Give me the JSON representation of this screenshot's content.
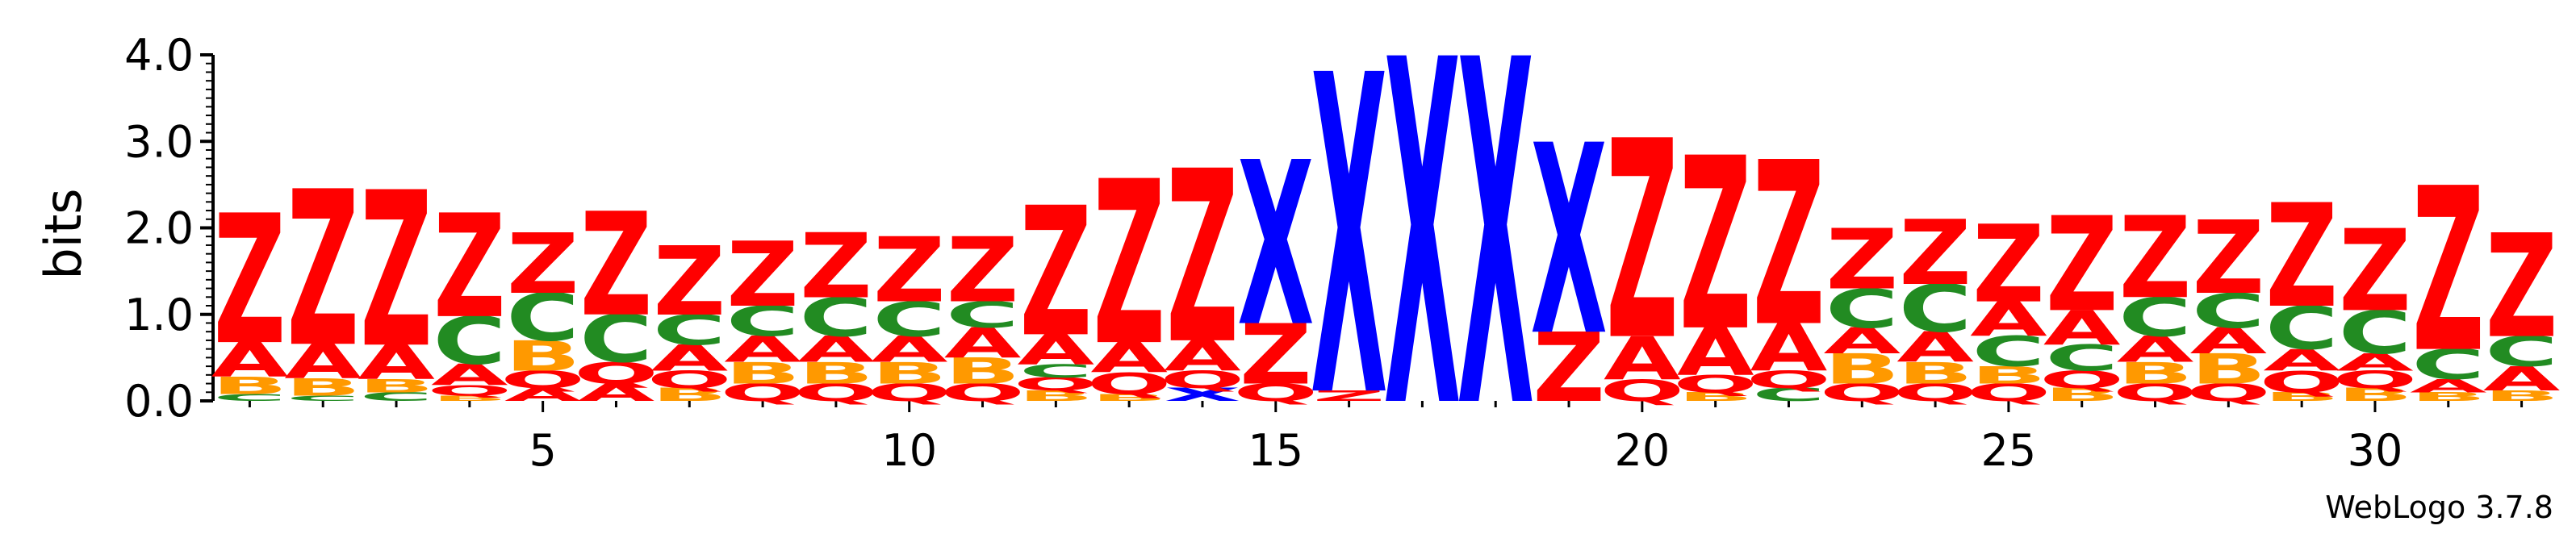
{
  "chart_data": {
    "type": "sequence-logo",
    "ylabel": "bits",
    "ylim": [
      0,
      4.0
    ],
    "y_ticks": [
      "0.0",
      "1.0",
      "2.0",
      "3.0",
      "4.0"
    ],
    "x_ticks": [
      "5",
      "10",
      "15",
      "20",
      "25",
      "30"
    ],
    "x_tick_positions": [
      5,
      10,
      15,
      20,
      25,
      30
    ],
    "positions": 32,
    "colors": {
      "Z": "#ff0000",
      "A": "#ff0000",
      "Q": "#ff0000",
      "B": "#ff9900",
      "C": "#228b22",
      "X": "#0000ff"
    },
    "stacks": [
      [
        [
          "C",
          0.08
        ],
        [
          "B",
          0.2
        ],
        [
          "A",
          0.4
        ],
        [
          "Z",
          1.5
        ]
      ],
      [
        [
          "C",
          0.06
        ],
        [
          "B",
          0.2
        ],
        [
          "A",
          0.4
        ],
        [
          "Z",
          1.8
        ]
      ],
      [
        [
          "C",
          0.1
        ],
        [
          "B",
          0.15
        ],
        [
          "A",
          0.4
        ],
        [
          "Z",
          1.8
        ]
      ],
      [
        [
          "B",
          0.06
        ],
        [
          "Q",
          0.12
        ],
        [
          "A",
          0.25
        ],
        [
          "C",
          0.55
        ],
        [
          "Z",
          1.2
        ]
      ],
      [
        [
          "A",
          0.15
        ],
        [
          "Q",
          0.2
        ],
        [
          "B",
          0.35
        ],
        [
          "C",
          0.55
        ],
        [
          "Z",
          0.7
        ]
      ],
      [
        [
          "A",
          0.2
        ],
        [
          "Q",
          0.25
        ],
        [
          "C",
          0.55
        ],
        [
          "Z",
          1.2
        ]
      ],
      [
        [
          "B",
          0.15
        ],
        [
          "Q",
          0.2
        ],
        [
          "A",
          0.3
        ],
        [
          "C",
          0.35
        ],
        [
          "Z",
          0.8
        ]
      ],
      [
        [
          "Q",
          0.2
        ],
        [
          "B",
          0.25
        ],
        [
          "A",
          0.3
        ],
        [
          "C",
          0.35
        ],
        [
          "Z",
          0.75
        ]
      ],
      [
        [
          "Q",
          0.2
        ],
        [
          "B",
          0.25
        ],
        [
          "A",
          0.3
        ],
        [
          "C",
          0.45
        ],
        [
          "Z",
          0.75
        ]
      ],
      [
        [
          "Q",
          0.2
        ],
        [
          "B",
          0.25
        ],
        [
          "A",
          0.3
        ],
        [
          "C",
          0.4
        ],
        [
          "Z",
          0.75
        ]
      ],
      [
        [
          "Q",
          0.2
        ],
        [
          "B",
          0.3
        ],
        [
          "A",
          0.35
        ],
        [
          "C",
          0.3
        ],
        [
          "Z",
          0.75
        ]
      ],
      [
        [
          "B",
          0.12
        ],
        [
          "Q",
          0.15
        ],
        [
          "C",
          0.15
        ],
        [
          "A",
          0.35
        ],
        [
          "Z",
          1.5
        ]
      ],
      [
        [
          "B",
          0.08
        ],
        [
          "Q",
          0.25
        ],
        [
          "A",
          0.35
        ],
        [
          "Z",
          1.9
        ]
      ],
      [
        [
          "X",
          0.15
        ],
        [
          "Q",
          0.2
        ],
        [
          "A",
          0.35
        ],
        [
          "Z",
          2.0
        ]
      ],
      [
        [
          "Q",
          0.2
        ],
        [
          "Z",
          0.7
        ],
        [
          "X",
          1.9
        ]
      ],
      [
        [
          "Z",
          0.12
        ],
        [
          "X",
          3.7
        ]
      ],
      [
        [
          "X",
          4.0
        ]
      ],
      [
        [
          "X",
          4.0
        ]
      ],
      [
        [
          "Z",
          0.8
        ],
        [
          "X",
          2.2
        ]
      ],
      [
        [
          "Q",
          0.25
        ],
        [
          "A",
          0.5
        ],
        [
          "Z",
          2.3
        ]
      ],
      [
        [
          "B",
          0.1
        ],
        [
          "Q",
          0.2
        ],
        [
          "A",
          0.55
        ],
        [
          "Z",
          2.0
        ]
      ],
      [
        [
          "C",
          0.15
        ],
        [
          "Q",
          0.2
        ],
        [
          "A",
          0.55
        ],
        [
          "Z",
          1.9
        ]
      ],
      [
        [
          "Q",
          0.2
        ],
        [
          "B",
          0.35
        ],
        [
          "A",
          0.3
        ],
        [
          "C",
          0.45
        ],
        [
          "Z",
          0.7
        ]
      ],
      [
        [
          "Q",
          0.2
        ],
        [
          "B",
          0.25
        ],
        [
          "A",
          0.35
        ],
        [
          "C",
          0.55
        ],
        [
          "Z",
          0.75
        ]
      ],
      [
        [
          "Q",
          0.2
        ],
        [
          "B",
          0.2
        ],
        [
          "C",
          0.35
        ],
        [
          "A",
          0.4
        ],
        [
          "Z",
          0.9
        ]
      ],
      [
        [
          "B",
          0.15
        ],
        [
          "Q",
          0.2
        ],
        [
          "C",
          0.3
        ],
        [
          "A",
          0.4
        ],
        [
          "Z",
          1.1
        ]
      ],
      [
        [
          "Q",
          0.2
        ],
        [
          "B",
          0.25
        ],
        [
          "A",
          0.3
        ],
        [
          "C",
          0.45
        ],
        [
          "Z",
          0.95
        ]
      ],
      [
        [
          "Q",
          0.2
        ],
        [
          "B",
          0.35
        ],
        [
          "A",
          0.3
        ],
        [
          "C",
          0.4
        ],
        [
          "Z",
          0.85
        ]
      ],
      [
        [
          "B",
          0.1
        ],
        [
          "Q",
          0.25
        ],
        [
          "A",
          0.25
        ],
        [
          "C",
          0.5
        ],
        [
          "Z",
          1.2
        ]
      ],
      [
        [
          "B",
          0.15
        ],
        [
          "Q",
          0.2
        ],
        [
          "A",
          0.2
        ],
        [
          "C",
          0.5
        ],
        [
          "Z",
          0.95
        ]
      ],
      [
        [
          "B",
          0.1
        ],
        [
          "A",
          0.15
        ],
        [
          "C",
          0.35
        ],
        [
          "Z",
          1.9
        ]
      ],
      [
        [
          "B",
          0.12
        ],
        [
          "A",
          0.28
        ],
        [
          "C",
          0.35
        ],
        [
          "Z",
          1.2
        ]
      ]
    ]
  },
  "footer": {
    "text": "WebLogo 3.7.8"
  }
}
